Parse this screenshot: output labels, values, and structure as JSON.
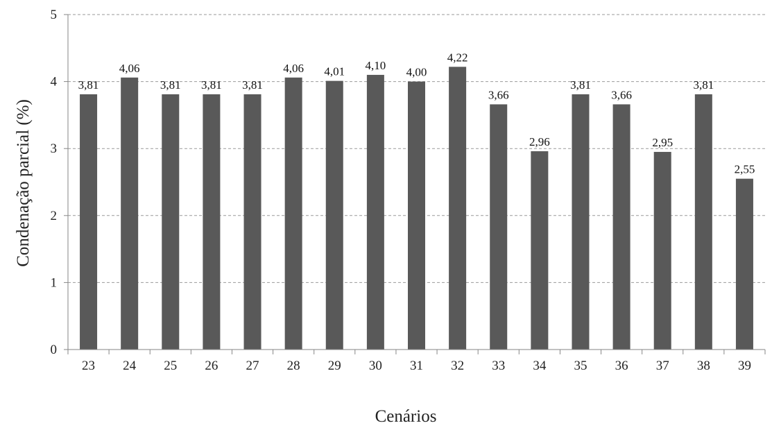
{
  "chart_data": {
    "type": "bar",
    "categories": [
      "23",
      "24",
      "25",
      "26",
      "27",
      "28",
      "29",
      "30",
      "31",
      "32",
      "33",
      "34",
      "35",
      "36",
      "37",
      "38",
      "39"
    ],
    "values": [
      3.81,
      4.06,
      3.81,
      3.81,
      3.81,
      4.06,
      4.01,
      4.1,
      4.0,
      4.22,
      3.66,
      2.96,
      3.81,
      3.66,
      2.95,
      3.81,
      2.55
    ],
    "data_labels": [
      "3,81",
      "4,06",
      "3,81",
      "3,81",
      "3,81",
      "4,06",
      "4,01",
      "4,10",
      "4,00",
      "4,22",
      "3,66",
      "2,96",
      "3,81",
      "3,66",
      "2,95",
      "3,81",
      "2,55"
    ],
    "y_ticks": [
      "0",
      "1",
      "2",
      "3",
      "4",
      "5"
    ],
    "ylim": [
      0,
      5
    ],
    "xlabel": "Cenários",
    "ylabel": "Condenação  parcial  (%)",
    "title": "",
    "grid": "horizontal dashed",
    "legend": "none",
    "bar_color": "#595959",
    "grid_color": "#9a9a9a",
    "axis_color": "#868686"
  }
}
